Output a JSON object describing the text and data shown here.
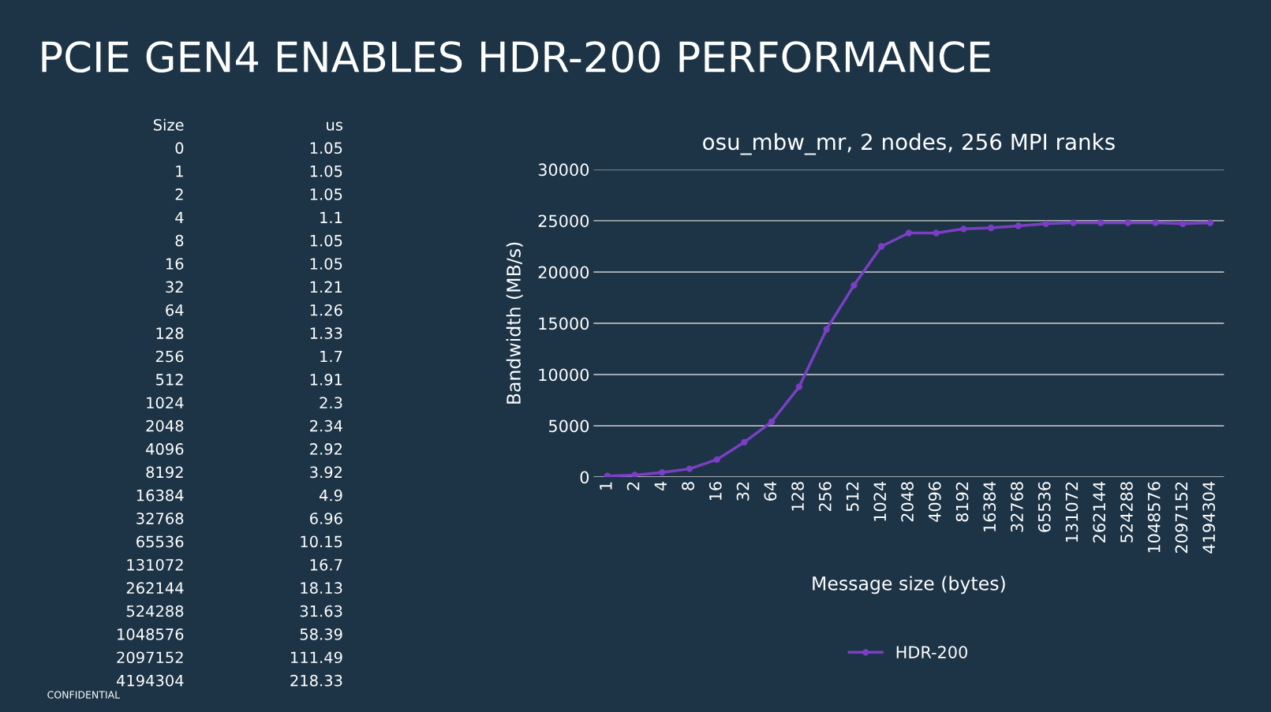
{
  "chart_data": [
    {
      "type": "other",
      "title": "PCIE GEN4 ENABLES HDR-200 PERFORMANCE",
      "annotations": [
        "Size",
        "us",
        "CONFIDENTIAL"
      ],
      "categories": [
        "0",
        "1",
        "2",
        "4",
        "8",
        "16",
        "32",
        "64",
        "128",
        "256",
        "512",
        "1024",
        "2048",
        "4096",
        "8192",
        "16384",
        "32768",
        "65536",
        "131072",
        "262144",
        "524288",
        "1048576",
        "2097152",
        "4194304"
      ],
      "values": [
        1.05,
        1.05,
        1.05,
        1.1,
        1.05,
        1.05,
        1.21,
        1.26,
        1.33,
        1.7,
        1.91,
        2.3,
        2.34,
        2.92,
        3.92,
        4.9,
        6.96,
        10.15,
        16.7,
        18.13,
        31.63,
        58.39,
        111.49,
        218.33
      ],
      "data_labels": true
    },
    {
      "type": "line",
      "title": "osu_mbw_mr, 2 nodes, 256 MPI ranks",
      "xlabel": "Message size (bytes)",
      "ylabel": "Bandwidth (MB/s)",
      "categories": [
        "1",
        "2",
        "4",
        "8",
        "16",
        "32",
        "64",
        "128",
        "256",
        "512",
        "1024",
        "2048",
        "4096",
        "8192",
        "16384",
        "32768",
        "65536",
        "131072",
        "262144",
        "524288",
        "1048576",
        "2097152",
        "4194304"
      ],
      "series": [
        {
          "name": "HDR-200",
          "color": "#7b3fc4",
          "values": [
            100,
            200,
            450,
            800,
            1700,
            3400,
            5400,
            8800,
            14400,
            18700,
            22500,
            23800,
            23800,
            24200,
            24300,
            24500,
            24700,
            24800,
            24800,
            24800,
            24800,
            24700,
            24800
          ]
        }
      ],
      "ylim": [
        0,
        30000
      ],
      "yticks": [
        0,
        5000,
        10000,
        15000,
        20000,
        25000,
        30000
      ],
      "grid": "y",
      "legend": "bottom",
      "marker": "circle",
      "line_style": "solid"
    }
  ]
}
